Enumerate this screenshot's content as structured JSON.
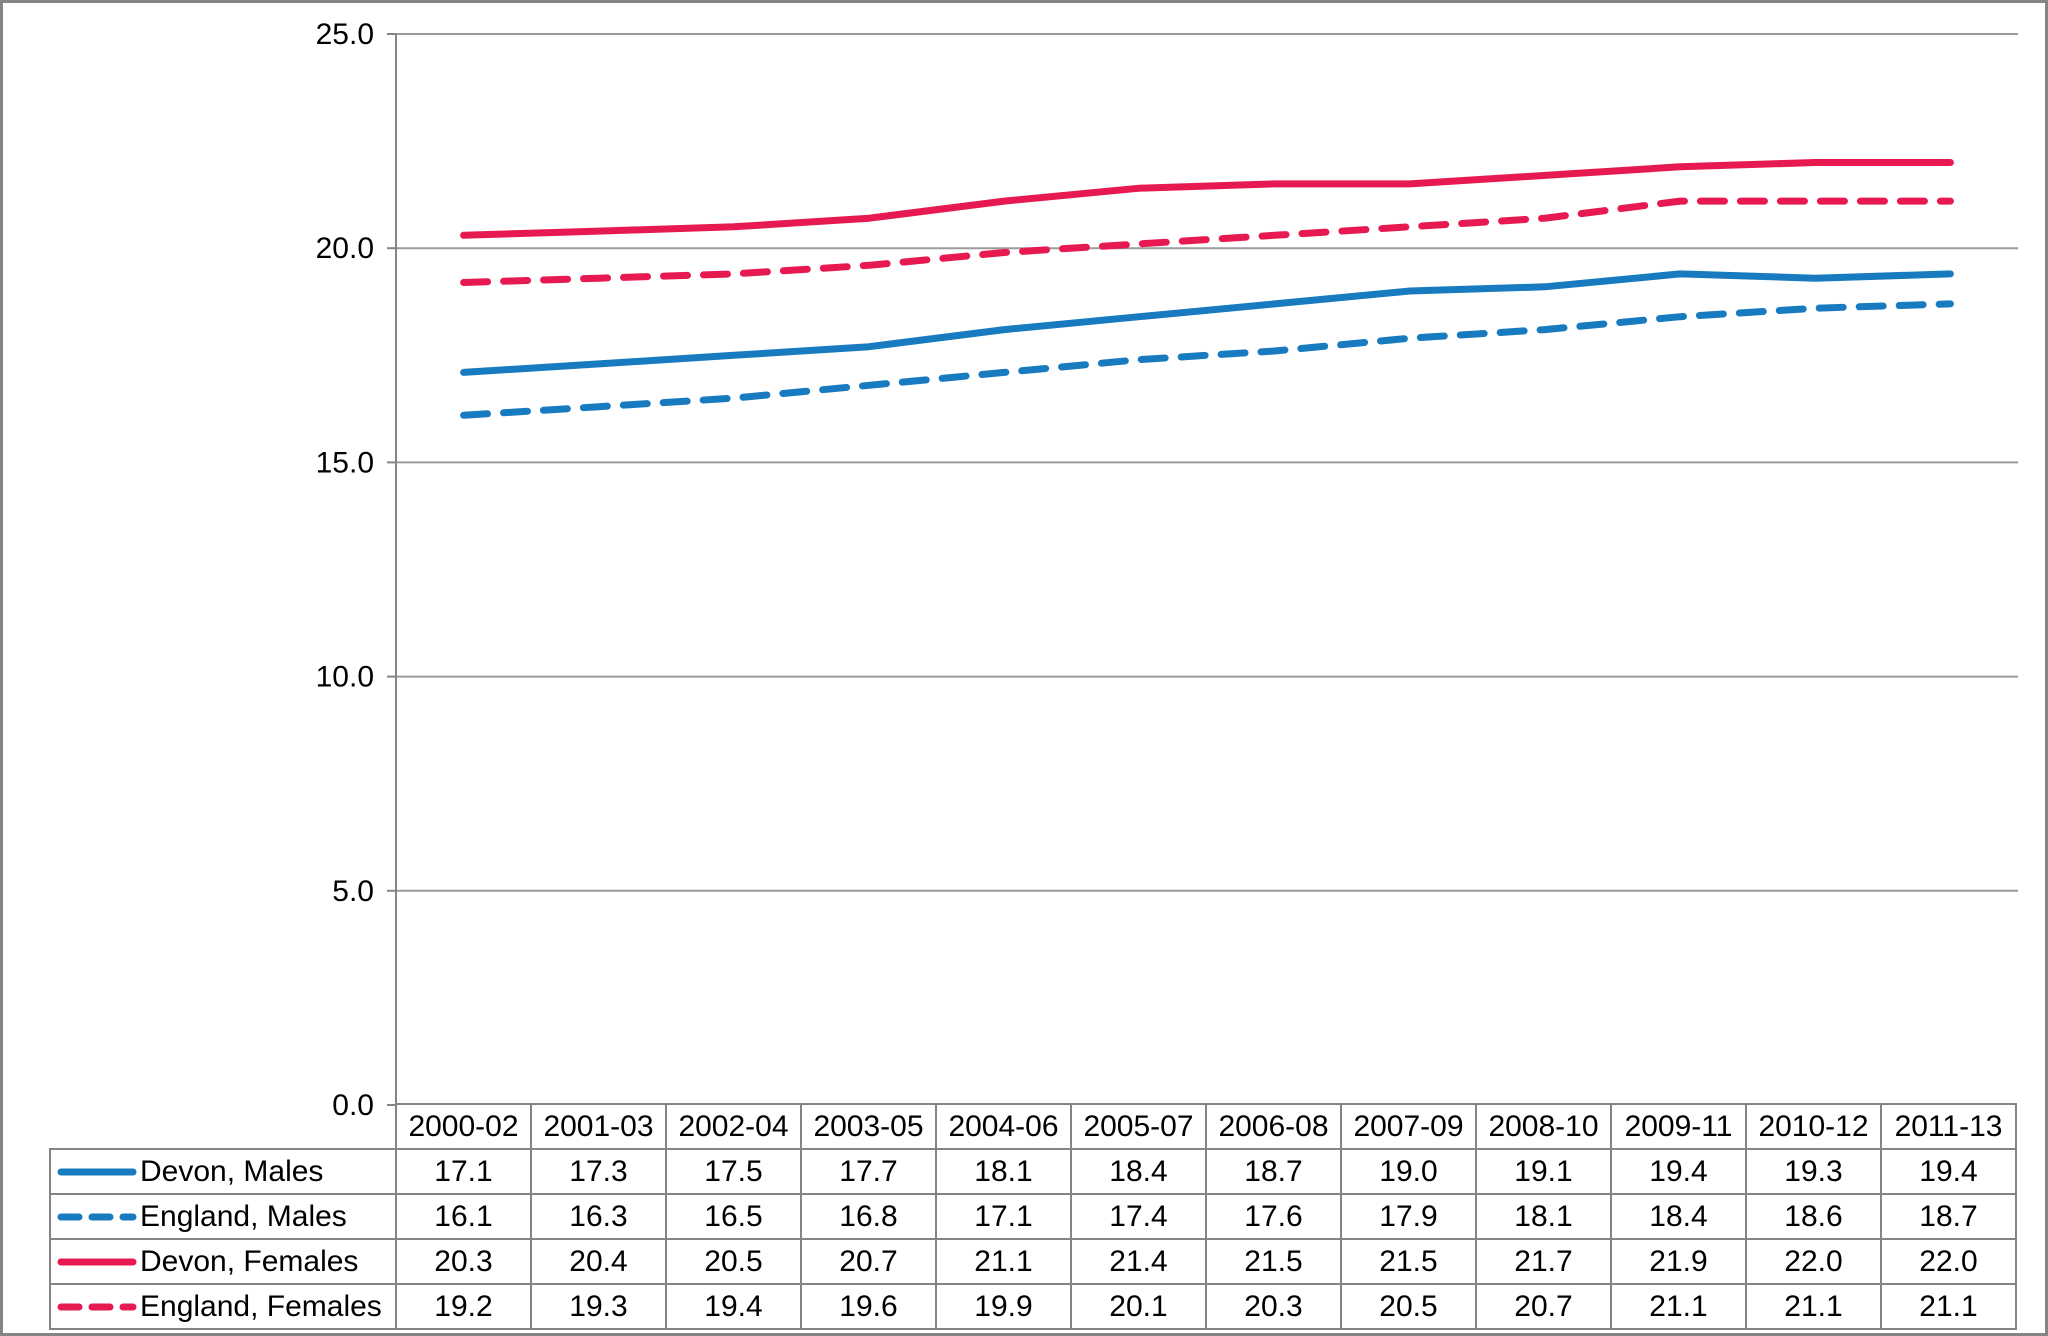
{
  "chart_data": {
    "type": "line",
    "title": "",
    "xlabel": "",
    "ylabel": "",
    "grid": true,
    "legend_position": "table-left",
    "ylim": [
      0,
      25
    ],
    "yticks": [
      "0.0",
      "5.0",
      "10.0",
      "15.0",
      "20.0",
      "25.0"
    ],
    "categories": [
      "2000-02",
      "2001-03",
      "2002-04",
      "2003-05",
      "2004-06",
      "2005-07",
      "2006-08",
      "2007-09",
      "2008-10",
      "2009-11",
      "2010-12",
      "2011-13"
    ],
    "series": [
      {
        "name": "Devon, Males",
        "style": "solid",
        "color": "#187bc0",
        "values": [
          17.1,
          17.3,
          17.5,
          17.7,
          18.1,
          18.4,
          18.7,
          19.0,
          19.1,
          19.4,
          19.3,
          19.4
        ]
      },
      {
        "name": "England, Males",
        "style": "dashed",
        "color": "#187bc0",
        "values": [
          16.1,
          16.3,
          16.5,
          16.8,
          17.1,
          17.4,
          17.6,
          17.9,
          18.1,
          18.4,
          18.6,
          18.7
        ]
      },
      {
        "name": "Devon, Females",
        "style": "solid",
        "color": "#e61a50",
        "values": [
          20.3,
          20.4,
          20.5,
          20.7,
          21.1,
          21.4,
          21.5,
          21.5,
          21.7,
          21.9,
          22.0,
          22.0
        ]
      },
      {
        "name": "England, Females",
        "style": "dashed",
        "color": "#e61a50",
        "values": [
          19.2,
          19.3,
          19.4,
          19.6,
          19.9,
          20.1,
          20.3,
          20.5,
          20.7,
          21.1,
          21.1,
          21.1
        ]
      }
    ]
  },
  "colors": {
    "grid": "#9a9a9a",
    "axis": "#848484",
    "table_border": "#848484",
    "text": "#000000",
    "background": "#ffffff"
  }
}
